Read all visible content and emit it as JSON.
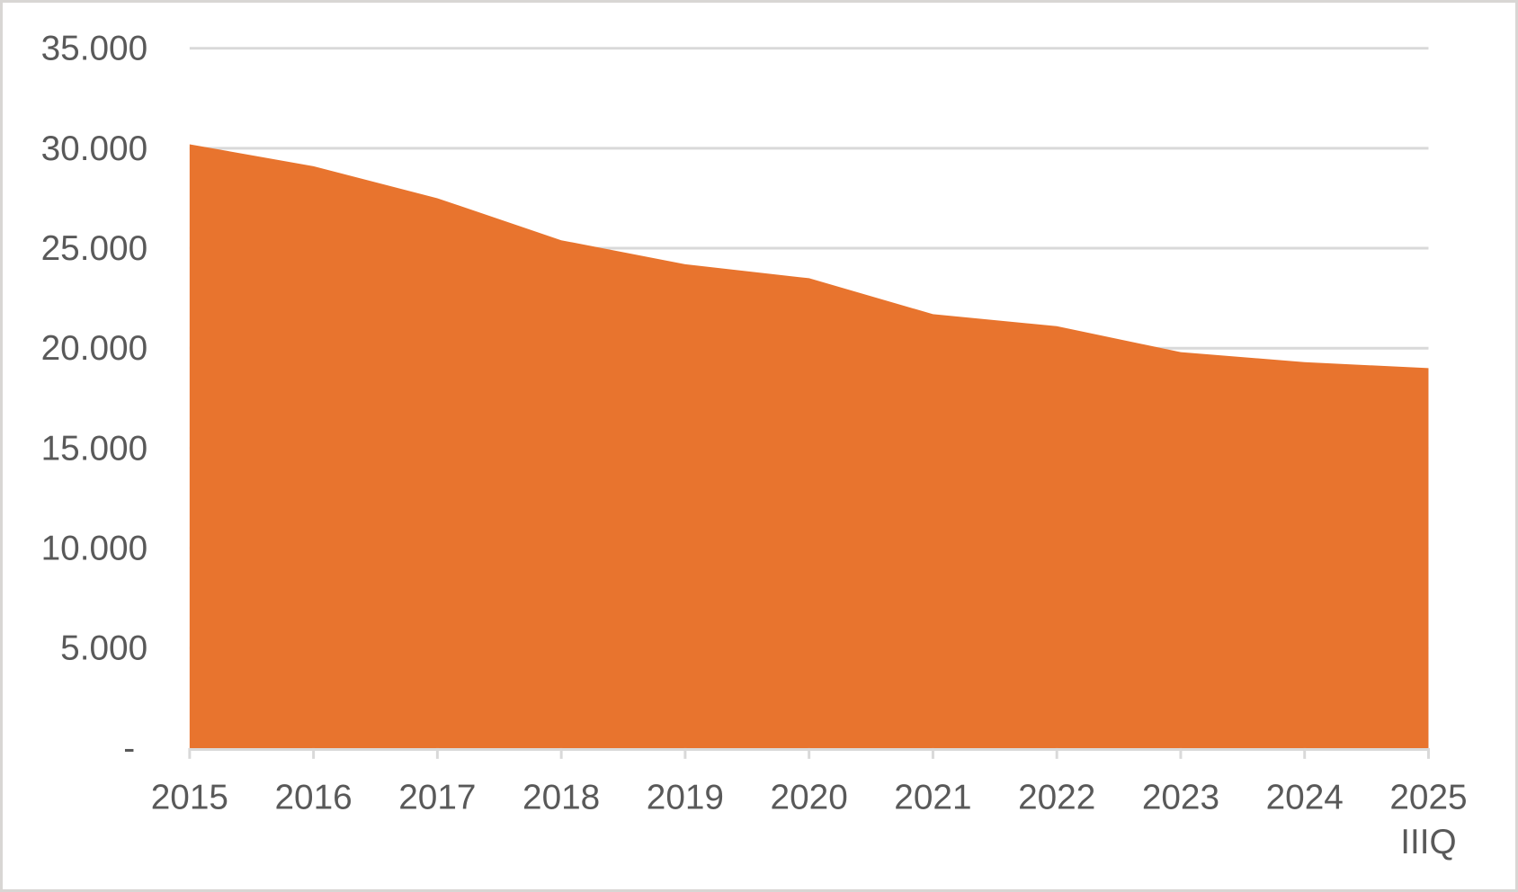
{
  "chart_data": {
    "type": "area",
    "title": "",
    "xlabel": "",
    "ylabel": "",
    "categories": [
      "2015",
      "2016",
      "2017",
      "2018",
      "2019",
      "2020",
      "2021",
      "2022",
      "2023",
      "2024",
      "2025 IIIQ"
    ],
    "values": [
      30200,
      29100,
      27500,
      25400,
      24200,
      23500,
      21700,
      21100,
      19800,
      19300,
      19000
    ],
    "x_tick_labels": [
      [
        "2015"
      ],
      [
        "2016"
      ],
      [
        "2017"
      ],
      [
        "2018"
      ],
      [
        "2019"
      ],
      [
        "2020"
      ],
      [
        "2021"
      ],
      [
        "2022"
      ],
      [
        "2023"
      ],
      [
        "2024"
      ],
      [
        "2025",
        "IIIQ"
      ]
    ],
    "y_ticks": [
      {
        "value": 35000,
        "label": "35.000"
      },
      {
        "value": 30000,
        "label": "30.000"
      },
      {
        "value": 25000,
        "label": "25.000"
      },
      {
        "value": 20000,
        "label": "20.000"
      },
      {
        "value": 15000,
        "label": "15.000"
      },
      {
        "value": 10000,
        "label": "10.000"
      },
      {
        "value": 5000,
        "label": "5.000"
      },
      {
        "value": 0,
        "label": "-"
      }
    ],
    "ylim": [
      0,
      35000
    ],
    "grid": true,
    "legend_position": "none",
    "colors": {
      "area": "#e8742e",
      "gridline": "#d9d9d9",
      "axis_line": "#d9d9d9",
      "tick_label": "#595959",
      "background": "#ffffff",
      "frame_border": "#d8d6d4"
    }
  }
}
